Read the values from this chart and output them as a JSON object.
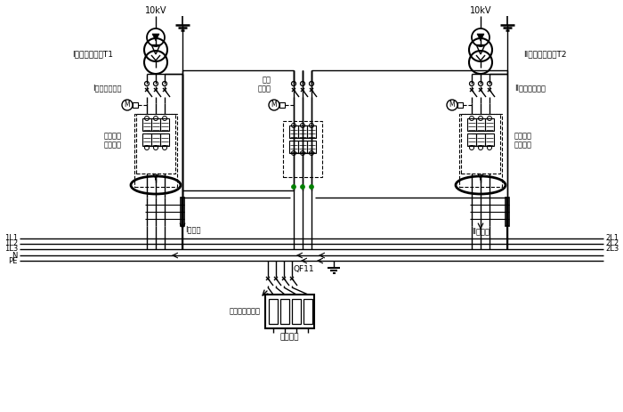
{
  "bg_color": "#ffffff",
  "line_color": "#000000",
  "green_color": "#008000",
  "fig_width": 7.0,
  "fig_height": 4.63,
  "dpi": 100,
  "labels": {
    "10kV_left": "10kV",
    "10kV_right": "10kV",
    "transformer_left": "I段电力变压器T1",
    "transformer_right": "II段电力变压器T2",
    "breaker_left": "I段进线断路器",
    "breaker_right": "II段进线断路器",
    "bus_coupler_1": "母联",
    "bus_coupler_2": "断路器",
    "fault_left_1": "接地故障",
    "fault_left_2": "电流检测",
    "fault_right_1": "接地故障",
    "fault_right_2": "电流检测",
    "bus_left": "I段母线",
    "bus_right": "II段母线",
    "1L1": "1L1",
    "1L2": "1L2",
    "1L3": "1L3",
    "N": "N",
    "PE": "PE",
    "2L1": "2L1",
    "2L2": "2L2",
    "2L3": "2L3",
    "QF11": "QF11",
    "fault_point": "单相接地故障点",
    "load": "用电设备",
    "M": "M"
  }
}
